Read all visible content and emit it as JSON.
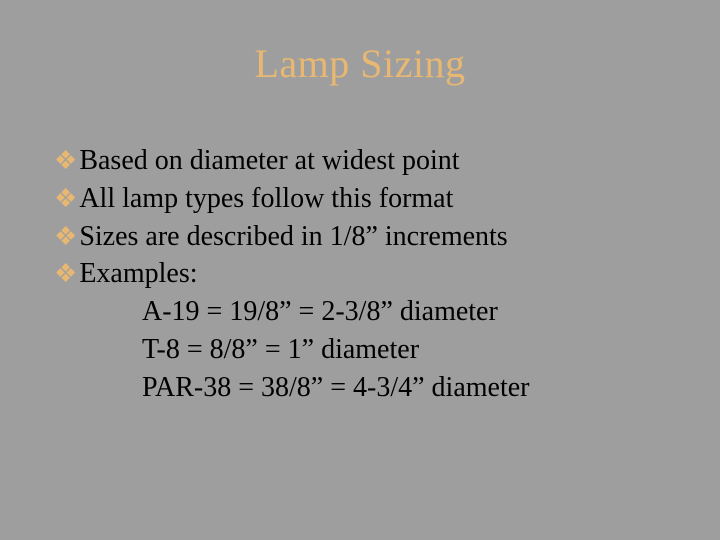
{
  "background_color": "#9e9e9e",
  "title": {
    "text": "Lamp Sizing",
    "color": "#e8b873",
    "fontsize": 40
  },
  "bullet": {
    "glyph": "❖",
    "color": "#e8b873",
    "fontsize": 26
  },
  "body": {
    "color": "#000000",
    "fontsize": 28
  },
  "bullets": [
    "Based on diameter at widest point",
    "All lamp types follow this format",
    "Sizes are described in 1/8” increments",
    "Examples:"
  ],
  "examples": [
    "A-19 = 19/8” = 2-3/8” diameter",
    "T-8 = 8/8” = 1” diameter",
    "PAR-38 = 38/8” = 4-3/4” diameter"
  ]
}
